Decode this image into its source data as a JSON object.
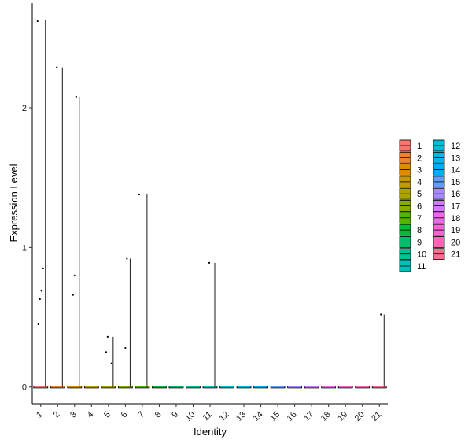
{
  "chart_data": {
    "type": "violin",
    "title": "",
    "xlabel": "Identity",
    "ylabel": "Expression Level",
    "ylim": [
      -0.12,
      2.75
    ],
    "yticks": [
      0,
      1,
      2
    ],
    "grid": false,
    "legend_position": "right",
    "categories": [
      "1",
      "2",
      "3",
      "4",
      "5",
      "6",
      "7",
      "8",
      "9",
      "10",
      "11",
      "12",
      "13",
      "14",
      "15",
      "16",
      "17",
      "18",
      "19",
      "20",
      "21"
    ],
    "colors": [
      "#F8766D",
      "#EB8335",
      "#DA8F00",
      "#C49A00",
      "#A9A400",
      "#86AC00",
      "#53B400",
      "#00BA38",
      "#00BE6D",
      "#00C094",
      "#00C0B7",
      "#00BDD5",
      "#00B6EB",
      "#00ADFA",
      "#619CFF",
      "#A58AFF",
      "#D078FF",
      "#EB6AE9",
      "#FB61D7",
      "#FF63B6",
      "#FF6C91"
    ],
    "series": [
      {
        "name": "1",
        "max": 2.63,
        "points": [
          2.62,
          0.85,
          0.69,
          0.63,
          0.45
        ]
      },
      {
        "name": "2",
        "max": 2.29,
        "points": [
          2.29
        ]
      },
      {
        "name": "3",
        "max": 2.08,
        "points": [
          2.08,
          0.8,
          0.66
        ]
      },
      {
        "name": "4",
        "max": 0,
        "points": []
      },
      {
        "name": "5",
        "max": 0.36,
        "points": [
          0.36,
          0.25,
          0.17
        ]
      },
      {
        "name": "6",
        "max": 0.92,
        "points": [
          0.92,
          0.28
        ]
      },
      {
        "name": "7",
        "max": 1.38,
        "points": [
          1.38
        ]
      },
      {
        "name": "8",
        "max": 0,
        "points": []
      },
      {
        "name": "9",
        "max": 0,
        "points": []
      },
      {
        "name": "10",
        "max": 0,
        "points": []
      },
      {
        "name": "11",
        "max": 0.89,
        "points": [
          0.89
        ]
      },
      {
        "name": "12",
        "max": 0,
        "points": []
      },
      {
        "name": "13",
        "max": 0,
        "points": []
      },
      {
        "name": "14",
        "max": 0,
        "points": []
      },
      {
        "name": "15",
        "max": 0,
        "points": []
      },
      {
        "name": "16",
        "max": 0,
        "points": []
      },
      {
        "name": "17",
        "max": 0,
        "points": []
      },
      {
        "name": "18",
        "max": 0,
        "points": []
      },
      {
        "name": "19",
        "max": 0,
        "points": []
      },
      {
        "name": "20",
        "max": 0,
        "points": []
      },
      {
        "name": "21",
        "max": 0.52,
        "points": [
          0.52
        ]
      }
    ]
  }
}
